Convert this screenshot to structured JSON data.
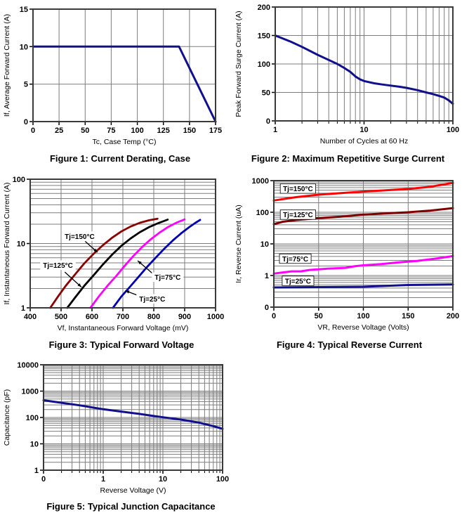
{
  "page": {
    "background": "#ffffff",
    "accent_navy": "#10108E"
  },
  "chart_data": [
    {
      "id": "fig1",
      "type": "line",
      "caption": "Figure 1: Current Derating, Case",
      "xlabel": "Tc, Case Temp (°C)",
      "ylabel": "If, Average Forward Current (A)",
      "x": {
        "scale": "linear",
        "min": 0,
        "max": 175,
        "ticks": [
          {
            "v": 0,
            "l": "0"
          },
          {
            "v": 25,
            "l": "25"
          },
          {
            "v": 50,
            "l": "50"
          },
          {
            "v": 75,
            "l": "75"
          },
          {
            "v": 100,
            "l": "100"
          },
          {
            "v": 125,
            "l": "125"
          },
          {
            "v": 150,
            "l": "150"
          },
          {
            "v": 175,
            "l": "175"
          }
        ]
      },
      "y": {
        "scale": "linear",
        "min": 0,
        "max": 15,
        "ticks": [
          {
            "v": 0,
            "l": "0"
          },
          {
            "v": 5,
            "l": "5"
          },
          {
            "v": 10,
            "l": "10"
          },
          {
            "v": 15,
            "l": "15"
          }
        ]
      },
      "series": [
        {
          "name": "average-forward-current-limit",
          "color": "#10108E",
          "width": 3,
          "points": [
            [
              0,
              10
            ],
            [
              140,
              10
            ],
            [
              175,
              0
            ]
          ]
        }
      ],
      "annotations": []
    },
    {
      "id": "fig2",
      "type": "line",
      "caption": "Figure 2: Maximum Repetitive Surge Current",
      "xlabel": "Number of Cycles at 60 Hz",
      "ylabel": "Peak Forward Surge Current (A)",
      "x": {
        "scale": "log",
        "min": 1,
        "max": 100,
        "ticks": [
          {
            "v": 1,
            "l": "1"
          },
          {
            "v": 10,
            "l": "10"
          },
          {
            "v": 100,
            "l": "100"
          }
        ]
      },
      "y": {
        "scale": "linear",
        "min": 0,
        "max": 200,
        "ticks": [
          {
            "v": 0,
            "l": "0"
          },
          {
            "v": 50,
            "l": "50"
          },
          {
            "v": 100,
            "l": "100"
          },
          {
            "v": 150,
            "l": "150"
          },
          {
            "v": 200,
            "l": "200"
          }
        ]
      },
      "series": [
        {
          "name": "peak-surge-current",
          "color": "#10108E",
          "width": 3,
          "points": [
            [
              1,
              150
            ],
            [
              1.5,
              139
            ],
            [
              2,
              130
            ],
            [
              3,
              116
            ],
            [
              4,
              107
            ],
            [
              5,
              100
            ],
            [
              6,
              93
            ],
            [
              7,
              86
            ],
            [
              8,
              78
            ],
            [
              9,
              73
            ],
            [
              10,
              70
            ],
            [
              13,
              66
            ],
            [
              16,
              64
            ],
            [
              20,
              62
            ],
            [
              25,
              60
            ],
            [
              30,
              58
            ],
            [
              40,
              54
            ],
            [
              50,
              50
            ],
            [
              60,
              47
            ],
            [
              70,
              44
            ],
            [
              80,
              41
            ],
            [
              90,
              36
            ],
            [
              100,
              30
            ]
          ]
        }
      ],
      "annotations": []
    },
    {
      "id": "fig3",
      "type": "line",
      "caption": "Figure 3: Typical Forward Voltage",
      "xlabel": "Vf, Instantaneous Forward  Voltage (mV)",
      "ylabel": "If, Instantaneous Forward Current (A)",
      "x": {
        "scale": "linear",
        "min": 400,
        "max": 1000,
        "ticks": [
          {
            "v": 400,
            "l": "400"
          },
          {
            "v": 500,
            "l": "500"
          },
          {
            "v": 600,
            "l": "600"
          },
          {
            "v": 700,
            "l": "700"
          },
          {
            "v": 800,
            "l": "800"
          },
          {
            "v": 900,
            "l": "900"
          },
          {
            "v": 1000,
            "l": "1000"
          }
        ]
      },
      "y": {
        "scale": "log",
        "min": 1,
        "max": 100,
        "ticks": [
          {
            "v": 1,
            "l": "1"
          },
          {
            "v": 10,
            "l": "10"
          },
          {
            "v": 100,
            "l": "100"
          }
        ]
      },
      "series": [
        {
          "name": "tj-150c",
          "color": "#8B0000",
          "width": 2.8,
          "points": [
            [
              465,
              1
            ],
            [
              490,
              1.5
            ],
            [
              515,
              2.2
            ],
            [
              545,
              3.3
            ],
            [
              575,
              4.9
            ],
            [
              605,
              6.9
            ],
            [
              635,
              9.4
            ],
            [
              665,
              12.3
            ],
            [
              695,
              15.4
            ],
            [
              725,
              18.4
            ],
            [
              755,
              21
            ],
            [
              785,
              23
            ],
            [
              812,
              24.3
            ]
          ]
        },
        {
          "name": "tj-125c",
          "color": "#000000",
          "width": 2.8,
          "points": [
            [
              520,
              1
            ],
            [
              548,
              1.5
            ],
            [
              575,
              2.2
            ],
            [
              605,
              3.2
            ],
            [
              635,
              4.7
            ],
            [
              665,
              6.7
            ],
            [
              695,
              9.2
            ],
            [
              725,
              12
            ],
            [
              755,
              15
            ],
            [
              785,
              18
            ],
            [
              815,
              20.8
            ],
            [
              845,
              23.5
            ]
          ]
        },
        {
          "name": "tj-75c",
          "color": "#FF00FF",
          "width": 2.8,
          "points": [
            [
              595,
              1
            ],
            [
              622,
              1.5
            ],
            [
              650,
              2.2
            ],
            [
              678,
              3.1
            ],
            [
              706,
              4.5
            ],
            [
              734,
              6.4
            ],
            [
              762,
              8.8
            ],
            [
              790,
              11.6
            ],
            [
              818,
              14.7
            ],
            [
              846,
              18
            ],
            [
              875,
              21.3
            ],
            [
              900,
              23.7
            ]
          ]
        },
        {
          "name": "tj-25c",
          "color": "#0000B0",
          "width": 2.8,
          "points": [
            [
              668,
              1
            ],
            [
              695,
              1.5
            ],
            [
              722,
              2.1
            ],
            [
              750,
              3
            ],
            [
              778,
              4.3
            ],
            [
              806,
              6
            ],
            [
              834,
              8.3
            ],
            [
              862,
              11.2
            ],
            [
              890,
              14.6
            ],
            [
              915,
              18
            ],
            [
              935,
              21
            ],
            [
              950,
              23.3
            ]
          ]
        }
      ],
      "annotations": [
        {
          "text": "Tj=150°C",
          "at": [
            560,
            13
          ],
          "bg": true,
          "border": false,
          "arrow": {
            "from": [
              578,
              10.8
            ],
            "to": [
              618,
              7.3
            ]
          }
        },
        {
          "text": "Tj=125°C",
          "at": [
            490,
            4.6
          ],
          "bg": true,
          "border": false,
          "arrow": {
            "from": [
              512,
              3.6
            ],
            "to": [
              566,
              2.1
            ]
          }
        },
        {
          "text": "Tj=75°C",
          "at": [
            845,
            3.0
          ],
          "bg": true,
          "border": false,
          "arrow": {
            "from": [
              800,
              3.3
            ],
            "to": [
              748,
              5.4
            ]
          }
        },
        {
          "text": "Tj=25°C",
          "at": [
            795,
            1.38
          ],
          "bg": true,
          "border": false,
          "arrow": {
            "from": [
              758,
              1.5
            ],
            "to": [
              708,
              1.85
            ]
          }
        }
      ]
    },
    {
      "id": "fig4",
      "type": "line",
      "caption": "Figure 4: Typical Reverse Current",
      "xlabel": "VR, Reverse Voltage (Volts)",
      "ylabel": "Ir, Reverse Current (uA)",
      "x": {
        "scale": "linear",
        "min": 0,
        "max": 200,
        "ticks": [
          {
            "v": 0,
            "l": "0"
          },
          {
            "v": 50,
            "l": "50"
          },
          {
            "v": 100,
            "l": "100"
          },
          {
            "v": 150,
            "l": "150"
          },
          {
            "v": 200,
            "l": "200"
          }
        ]
      },
      "y": {
        "scale": "log",
        "min": 0.1,
        "max": 1000,
        "ticks": [
          {
            "v": 1000,
            "l": "1000"
          },
          {
            "v": 100,
            "l": "100"
          },
          {
            "v": 10,
            "l": "10"
          },
          {
            "v": 1,
            "l": "1"
          },
          {
            "v": 0.1,
            "l": "0"
          }
        ]
      },
      "series": [
        {
          "name": "tj-150c",
          "color": "#FF0000",
          "width": 3,
          "points": [
            [
              0,
              235
            ],
            [
              10,
              260
            ],
            [
              25,
              300
            ],
            [
              50,
              360
            ],
            [
              75,
              405
            ],
            [
              100,
              450
            ],
            [
              125,
              495
            ],
            [
              150,
              545
            ],
            [
              175,
              640
            ],
            [
              200,
              850
            ]
          ]
        },
        {
          "name": "tj-125c",
          "color": "#7F0000",
          "width": 3,
          "points": [
            [
              0,
              42
            ],
            [
              10,
              50
            ],
            [
              25,
              57
            ],
            [
              50,
              65
            ],
            [
              60,
              68
            ],
            [
              75,
              73
            ],
            [
              100,
              84
            ],
            [
              125,
              92
            ],
            [
              150,
              100
            ],
            [
              175,
              113
            ],
            [
              200,
              135
            ]
          ]
        },
        {
          "name": "tj-75c",
          "color": "#FF00FF",
          "width": 3,
          "points": [
            [
              0,
              1.15
            ],
            [
              10,
              1.25
            ],
            [
              20,
              1.35
            ],
            [
              30,
              1.35
            ],
            [
              40,
              1.5
            ],
            [
              60,
              1.65
            ],
            [
              80,
              1.75
            ],
            [
              90,
              1.95
            ],
            [
              100,
              2.1
            ],
            [
              120,
              2.3
            ],
            [
              140,
              2.6
            ],
            [
              160,
              2.9
            ],
            [
              180,
              3.4
            ],
            [
              200,
              4.1
            ]
          ]
        },
        {
          "name": "tj-25c",
          "color": "#10108E",
          "width": 3,
          "points": [
            [
              0,
              0.42
            ],
            [
              50,
              0.43
            ],
            [
              100,
              0.44
            ],
            [
              150,
              0.5
            ],
            [
              200,
              0.52
            ]
          ]
        }
      ],
      "annotations": [
        {
          "text": "Tj=150°C",
          "at": [
            27,
            560
          ],
          "bg": true,
          "border": true
        },
        {
          "text": "Tj=125°C",
          "at": [
            27,
            84
          ],
          "bg": true,
          "border": true
        },
        {
          "text": "Tj=75°C",
          "at": [
            24,
            3.4
          ],
          "bg": true,
          "border": true
        },
        {
          "text": "Tj=25°C",
          "at": [
            27,
            0.68
          ],
          "bg": true,
          "border": true
        }
      ]
    },
    {
      "id": "fig5",
      "type": "line",
      "caption": "Figure 5: Typical Junction Capacitance",
      "xlabel": "Reverse Voltage (V)",
      "ylabel": "Capacitance  (pF)",
      "x": {
        "scale": "log",
        "min": 0.1,
        "max": 100,
        "ticks": [
          {
            "v": 0.1,
            "l": "0"
          },
          {
            "v": 1,
            "l": "1"
          },
          {
            "v": 10,
            "l": "10"
          },
          {
            "v": 100,
            "l": "100"
          }
        ]
      },
      "y": {
        "scale": "log",
        "min": 1,
        "max": 10000,
        "ticks": [
          {
            "v": 1,
            "l": "1"
          },
          {
            "v": 10,
            "l": "10"
          },
          {
            "v": 100,
            "l": "100"
          },
          {
            "v": 1000,
            "l": "1000"
          },
          {
            "v": 10000,
            "l": "10000"
          }
        ]
      },
      "series": [
        {
          "name": "junction-capacitance",
          "color": "#10108E",
          "width": 3,
          "points": [
            [
              0.1,
              450
            ],
            [
              0.2,
              360
            ],
            [
              0.4,
              290
            ],
            [
              0.7,
              235
            ],
            [
              1,
              205
            ],
            [
              2,
              168
            ],
            [
              4,
              137
            ],
            [
              7,
              114
            ],
            [
              10,
              102
            ],
            [
              20,
              83
            ],
            [
              40,
              64
            ],
            [
              70,
              47
            ],
            [
              100,
              37
            ]
          ]
        }
      ],
      "annotations": []
    }
  ]
}
